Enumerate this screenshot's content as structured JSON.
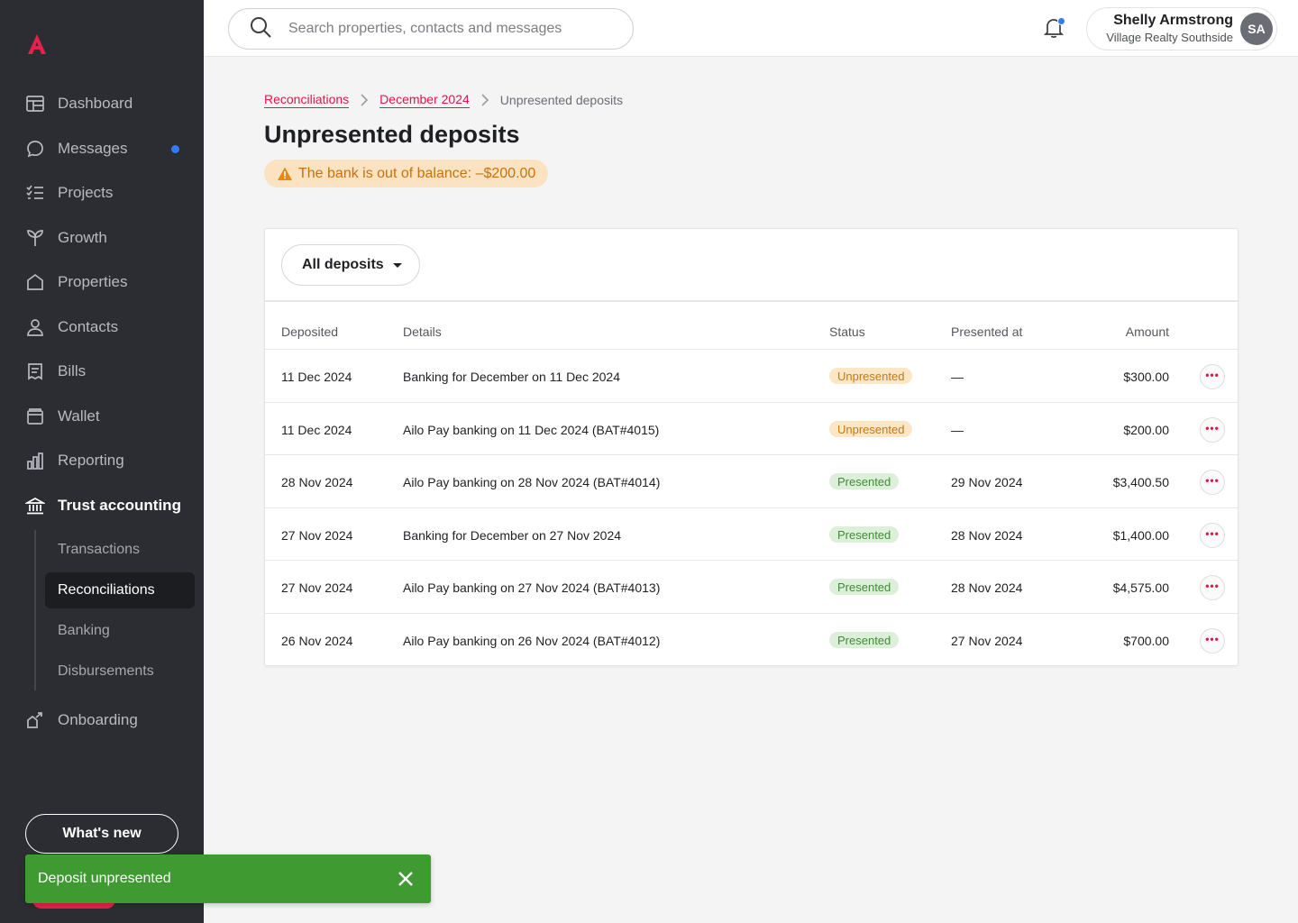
{
  "brand": {
    "accent": "#e0174a",
    "sidebar_bg": "#2b2d33"
  },
  "sidebar": {
    "items": [
      {
        "label": "Dashboard",
        "icon": "dashboard-icon"
      },
      {
        "label": "Messages",
        "icon": "chat-bubble-icon"
      },
      {
        "label": "Projects",
        "icon": "checklist-icon"
      },
      {
        "label": "Growth",
        "icon": "sprout-icon"
      },
      {
        "label": "Properties",
        "icon": "house-icon"
      },
      {
        "label": "Contacts",
        "icon": "person-icon"
      },
      {
        "label": "Bills",
        "icon": "receipt-icon"
      },
      {
        "label": "Wallet",
        "icon": "wallet-icon"
      },
      {
        "label": "Reporting",
        "icon": "bar-chart-icon"
      },
      {
        "label": "Trust accounting",
        "icon": "bank-icon"
      },
      {
        "label": "Onboarding",
        "icon": "onboarding-icon"
      }
    ],
    "sub_items": [
      {
        "label": "Transactions"
      },
      {
        "label": "Reconciliations"
      },
      {
        "label": "Banking"
      },
      {
        "label": "Disbursements"
      }
    ],
    "whats_new": "What's new"
  },
  "header": {
    "search_placeholder": "Search properties, contacts and messages",
    "user_name": "Shelly Armstrong",
    "user_org": "Village Realty Southside",
    "avatar_initials": "SA"
  },
  "breadcrumb": {
    "items": [
      "Reconciliations",
      "December 2024"
    ],
    "current": "Unpresented deposits"
  },
  "page": {
    "title": "Unpresented deposits",
    "warning": "The bank is out of balance: –$200.00"
  },
  "filter": {
    "label": "All deposits"
  },
  "table": {
    "headers": {
      "deposited": "Deposited",
      "details": "Details",
      "status": "Status",
      "presented_at": "Presented at",
      "amount": "Amount"
    },
    "rows": [
      {
        "deposited": "11 Dec 2024",
        "details": "Banking for December on 11 Dec 2024",
        "status": "Unpresented",
        "presented_at": "—",
        "amount": "$300.00"
      },
      {
        "deposited": "11 Dec 2024",
        "details": "Ailo Pay banking on 11 Dec 2024 (BAT#4015)",
        "status": "Unpresented",
        "presented_at": "—",
        "amount": "$200.00"
      },
      {
        "deposited": "28 Nov 2024",
        "details": "Ailo Pay banking on 28 Nov 2024 (BAT#4014)",
        "status": "Presented",
        "presented_at": "29 Nov 2024",
        "amount": "$3,400.50"
      },
      {
        "deposited": "27 Nov 2024",
        "details": "Banking for December on 27 Nov 2024",
        "status": "Presented",
        "presented_at": "28 Nov 2024",
        "amount": "$1,400.00"
      },
      {
        "deposited": "27 Nov 2024",
        "details": "Ailo Pay banking on 27 Nov 2024 (BAT#4013)",
        "status": "Presented",
        "presented_at": "28 Nov 2024",
        "amount": "$4,575.00"
      },
      {
        "deposited": "26 Nov 2024",
        "details": "Ailo Pay banking on 26 Nov 2024 (BAT#4012)",
        "status": "Presented",
        "presented_at": "27 Nov 2024",
        "amount": "$700.00"
      }
    ]
  },
  "toast": {
    "message": "Deposit unpresented",
    "color": "#3f9b31"
  }
}
